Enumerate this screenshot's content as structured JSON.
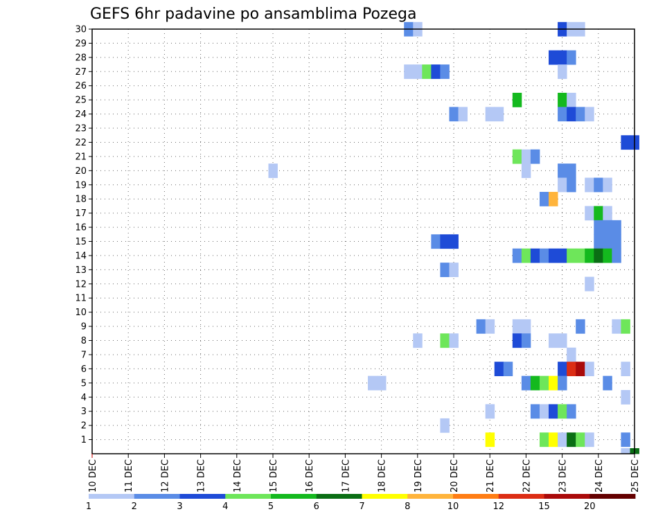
{
  "chart_data": {
    "type": "heatmap",
    "title": "GEFS 6hr padavine po ansamblima Pozega",
    "xlabel": "",
    "ylabel": "",
    "x_tick_labels": [
      "10 DEC",
      "11 DEC",
      "12 DEC",
      "13 DEC",
      "14 DEC",
      "15 DEC",
      "16 DEC",
      "17 DEC",
      "18 DEC",
      "19 DEC",
      "20 DEC",
      "21 DEC",
      "22 DEC",
      "23 DEC",
      "24 DEC",
      "25 DEC"
    ],
    "y_tick_labels": [
      "1",
      "2",
      "3",
      "4",
      "5",
      "6",
      "7",
      "8",
      "9",
      "10",
      "11",
      "12",
      "13",
      "14",
      "15",
      "16",
      "17",
      "18",
      "19",
      "20",
      "21",
      "22",
      "23",
      "24",
      "25",
      "26",
      "27",
      "28",
      "29",
      "30"
    ],
    "time_steps": 60,
    "time_step_hours": 6,
    "members": 30,
    "colorbar": {
      "tick_labels": [
        "1",
        "2",
        "3",
        "4",
        "5",
        "6",
        "7",
        "8",
        "10",
        "12",
        "15",
        "20"
      ],
      "colors": [
        "#b4c8f5",
        "#5a8ce6",
        "#1e4bd7",
        "#6ee65a",
        "#14b91e",
        "#0a6e14",
        "#ffff00",
        "#ffb43c",
        "#ff7d14",
        "#dc2d14",
        "#aa0a0a",
        "#640000"
      ]
    },
    "cells": [
      [
        30,
        35,
        1
      ],
      [
        30,
        36,
        0
      ],
      [
        30,
        52,
        2
      ],
      [
        30,
        53,
        0
      ],
      [
        30,
        54,
        0
      ],
      [
        28,
        51,
        2
      ],
      [
        28,
        52,
        2
      ],
      [
        28,
        53,
        1
      ],
      [
        27,
        35,
        0
      ],
      [
        27,
        36,
        0
      ],
      [
        27,
        37,
        3
      ],
      [
        27,
        38,
        2
      ],
      [
        27,
        39,
        1
      ],
      [
        27,
        52,
        0
      ],
      [
        25,
        47,
        4
      ],
      [
        25,
        52,
        4
      ],
      [
        25,
        53,
        0
      ],
      [
        24,
        40,
        1
      ],
      [
        24,
        41,
        0
      ],
      [
        24,
        44,
        0
      ],
      [
        24,
        45,
        0
      ],
      [
        24,
        52,
        1
      ],
      [
        24,
        53,
        2
      ],
      [
        24,
        54,
        1
      ],
      [
        24,
        55,
        0
      ],
      [
        22,
        59,
        2
      ],
      [
        22,
        60,
        2
      ],
      [
        21,
        47,
        3
      ],
      [
        21,
        48,
        0
      ],
      [
        21,
        49,
        1
      ],
      [
        20,
        20,
        0
      ],
      [
        20,
        48,
        0
      ],
      [
        20,
        52,
        1
      ],
      [
        20,
        53,
        1
      ],
      [
        19,
        52,
        0
      ],
      [
        19,
        53,
        1
      ],
      [
        19,
        55,
        0
      ],
      [
        19,
        56,
        1
      ],
      [
        19,
        57,
        0
      ],
      [
        18,
        50,
        1
      ],
      [
        18,
        51,
        7
      ],
      [
        17,
        55,
        0
      ],
      [
        17,
        56,
        4
      ],
      [
        17,
        57,
        0
      ],
      [
        16,
        56,
        1
      ],
      [
        16,
        57,
        1
      ],
      [
        16,
        58,
        1
      ],
      [
        15,
        38,
        1
      ],
      [
        15,
        39,
        2
      ],
      [
        15,
        40,
        2
      ],
      [
        15,
        56,
        1
      ],
      [
        15,
        57,
        1
      ],
      [
        15,
        58,
        1
      ],
      [
        14,
        47,
        1
      ],
      [
        14,
        48,
        3
      ],
      [
        14,
        49,
        2
      ],
      [
        14,
        50,
        1
      ],
      [
        14,
        51,
        2
      ],
      [
        14,
        52,
        2
      ],
      [
        14,
        53,
        3
      ],
      [
        14,
        54,
        3
      ],
      [
        14,
        55,
        4
      ],
      [
        14,
        56,
        5
      ],
      [
        14,
        57,
        4
      ],
      [
        14,
        58,
        1
      ],
      [
        13,
        39,
        1
      ],
      [
        13,
        40,
        0
      ],
      [
        12,
        55,
        0
      ],
      [
        9,
        43,
        1
      ],
      [
        9,
        44,
        0
      ],
      [
        9,
        47,
        0
      ],
      [
        9,
        48,
        0
      ],
      [
        9,
        54,
        1
      ],
      [
        9,
        58,
        0
      ],
      [
        9,
        59,
        3
      ],
      [
        8,
        36,
        0
      ],
      [
        8,
        39,
        3
      ],
      [
        8,
        40,
        0
      ],
      [
        8,
        47,
        2
      ],
      [
        8,
        48,
        1
      ],
      [
        8,
        51,
        0
      ],
      [
        8,
        52,
        0
      ],
      [
        7,
        53,
        0
      ],
      [
        6,
        45,
        2
      ],
      [
        6,
        46,
        1
      ],
      [
        6,
        52,
        2
      ],
      [
        6,
        53,
        9
      ],
      [
        6,
        54,
        10
      ],
      [
        6,
        55,
        0
      ],
      [
        6,
        59,
        0
      ],
      [
        5,
        31,
        0
      ],
      [
        5,
        32,
        0
      ],
      [
        5,
        48,
        1
      ],
      [
        5,
        49,
        4
      ],
      [
        5,
        50,
        3
      ],
      [
        5,
        51,
        6
      ],
      [
        5,
        52,
        1
      ],
      [
        5,
        57,
        1
      ],
      [
        4,
        59,
        0
      ],
      [
        3,
        44,
        0
      ],
      [
        3,
        49,
        1
      ],
      [
        3,
        50,
        0
      ],
      [
        3,
        51,
        2
      ],
      [
        3,
        52,
        3
      ],
      [
        3,
        53,
        1
      ],
      [
        2,
        39,
        0
      ],
      [
        1,
        44,
        6
      ],
      [
        1,
        50,
        3
      ],
      [
        1,
        51,
        6
      ],
      [
        1,
        52,
        0
      ],
      [
        1,
        53,
        5
      ],
      [
        1,
        54,
        3
      ],
      [
        1,
        55,
        0
      ],
      [
        1,
        59,
        1
      ],
      [
        0,
        59,
        0
      ],
      [
        0,
        60,
        5
      ]
    ]
  }
}
